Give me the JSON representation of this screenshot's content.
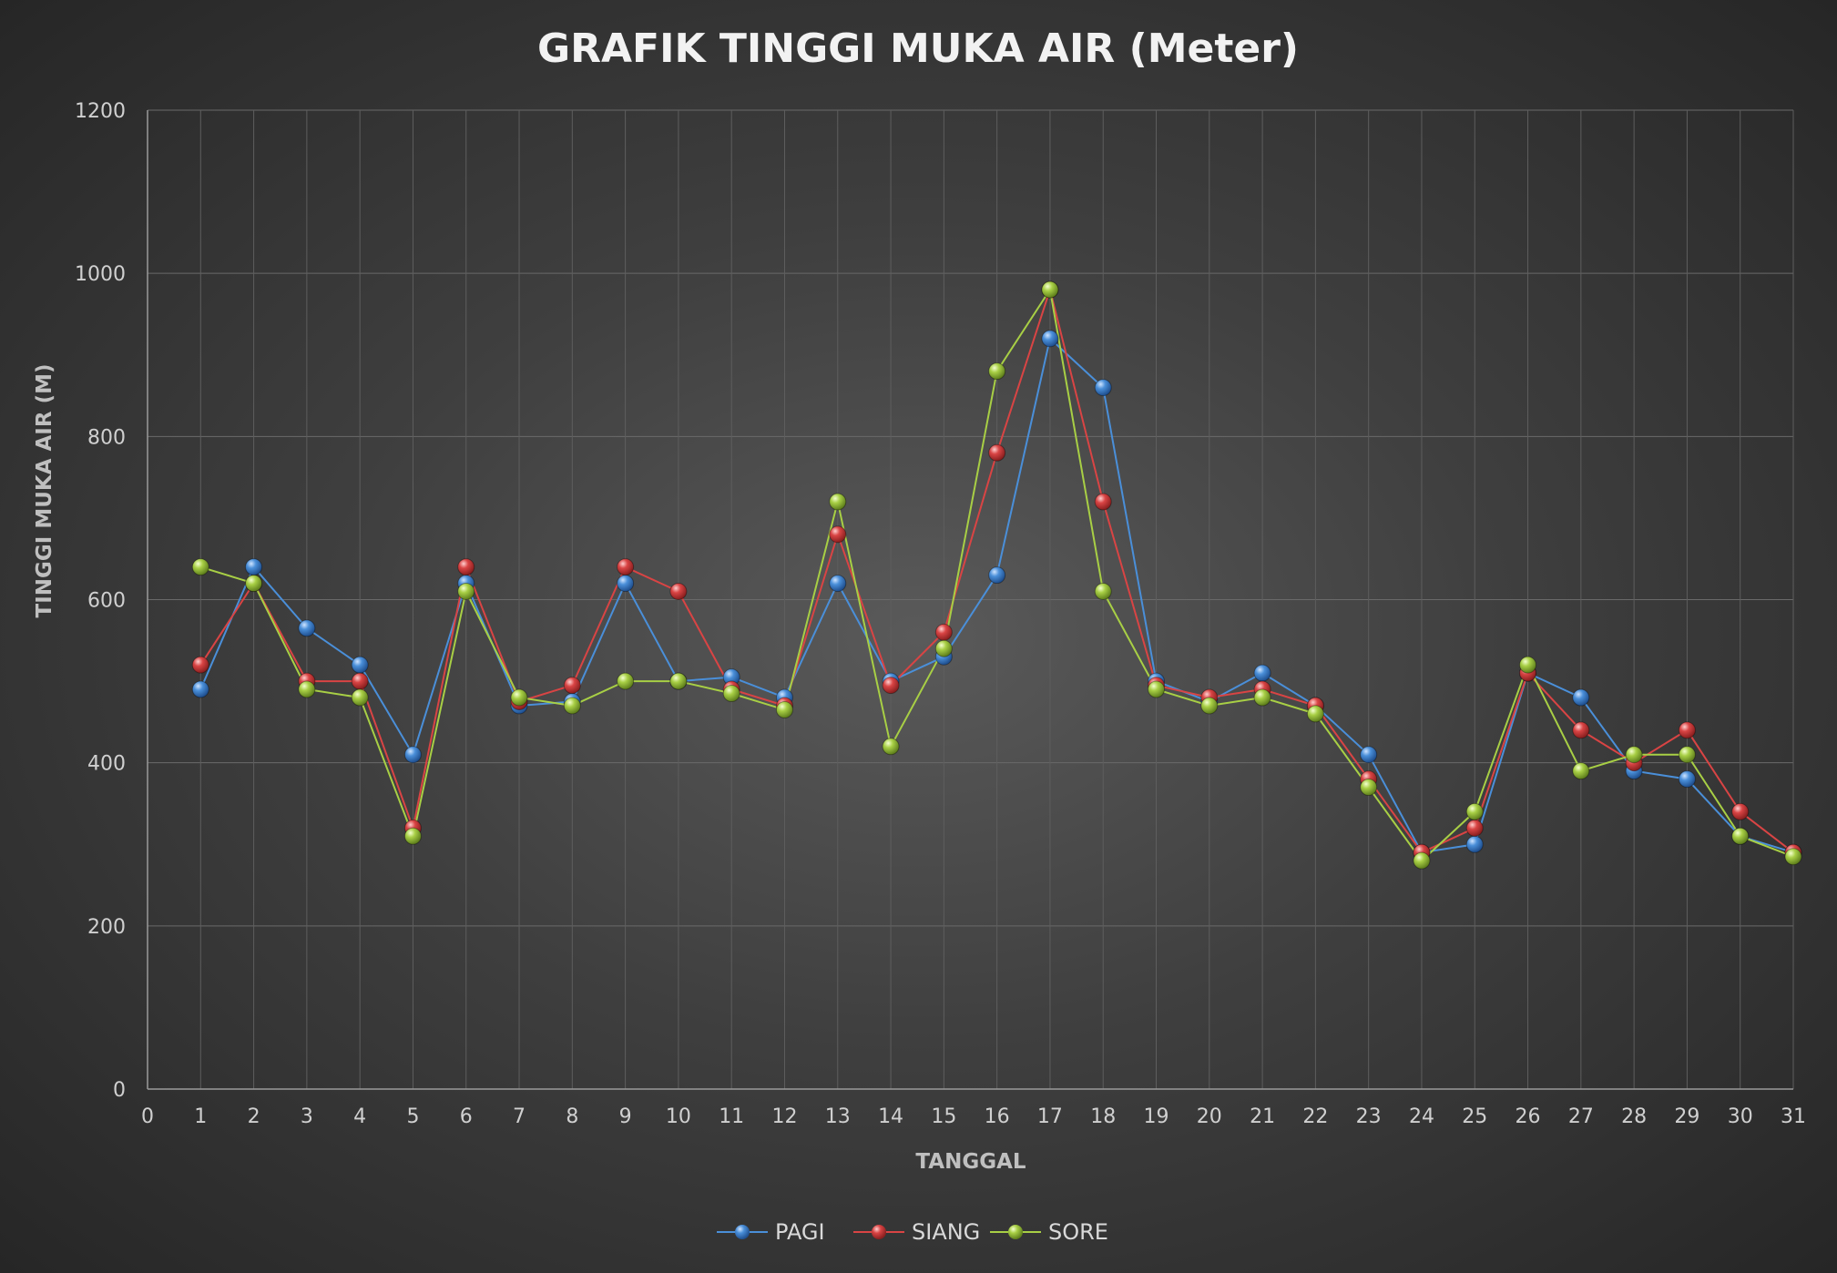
{
  "chart_data": {
    "type": "line",
    "title": "GRAFIK TINGGI MUKA AIR (Meter)",
    "xlabel": "TANGGAL",
    "ylabel": "TINGGI MUKA AIR (M)",
    "xlim": [
      0,
      31
    ],
    "ylim": [
      0,
      1200
    ],
    "x_ticks": [
      0,
      1,
      2,
      3,
      4,
      5,
      6,
      7,
      8,
      9,
      10,
      11,
      12,
      13,
      14,
      15,
      16,
      17,
      18,
      19,
      20,
      21,
      22,
      23,
      24,
      25,
      26,
      27,
      28,
      29,
      30,
      31
    ],
    "y_ticks": [
      0,
      200,
      400,
      600,
      800,
      1000,
      1200
    ],
    "grid": true,
    "legend_position": "bottom",
    "x": [
      1,
      2,
      3,
      4,
      5,
      6,
      7,
      8,
      9,
      10,
      11,
      12,
      13,
      14,
      15,
      16,
      17,
      18,
      19,
      20,
      21,
      22,
      23,
      24,
      25,
      26,
      27,
      28,
      29,
      30,
      31
    ],
    "series": [
      {
        "name": "PAGI",
        "color": "#4a8fd9",
        "values": [
          490,
          640,
          565,
          520,
          410,
          620,
          470,
          475,
          620,
          500,
          505,
          480,
          620,
          500,
          530,
          630,
          920,
          860,
          500,
          475,
          510,
          470,
          410,
          290,
          300,
          510,
          480,
          390,
          380,
          310,
          290
        ]
      },
      {
        "name": "SIANG",
        "color": "#d94444",
        "values": [
          520,
          620,
          500,
          500,
          320,
          640,
          475,
          495,
          640,
          610,
          490,
          470,
          680,
          495,
          560,
          780,
          980,
          720,
          495,
          480,
          490,
          470,
          380,
          290,
          320,
          510,
          440,
          400,
          440,
          340,
          290
        ]
      },
      {
        "name": "SORE",
        "color": "#a8cf45",
        "values": [
          640,
          620,
          490,
          480,
          310,
          610,
          480,
          470,
          500,
          500,
          485,
          465,
          720,
          420,
          540,
          880,
          980,
          610,
          490,
          470,
          480,
          460,
          370,
          280,
          340,
          520,
          390,
          410,
          410,
          310,
          285
        ]
      }
    ]
  }
}
